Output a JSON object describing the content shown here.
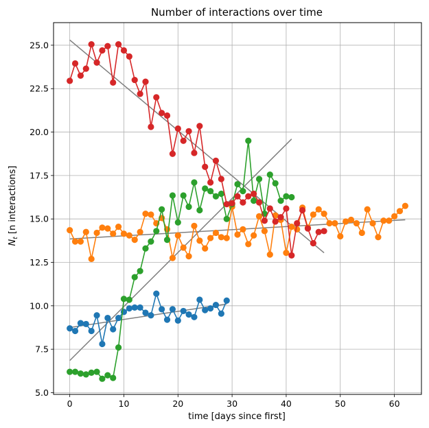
{
  "chart_data": {
    "type": "line",
    "title": "Number of interactions over time",
    "xlabel": "time [days since first]",
    "ylabel": {
      "main": "N",
      "sub": "t",
      "rest": " [n interactions]"
    },
    "xlim": [
      -3,
      65
    ],
    "ylim": [
      4.9,
      26.3
    ],
    "xticks": [
      0,
      10,
      20,
      30,
      40,
      50,
      60
    ],
    "yticks": [
      5.0,
      7.5,
      10.0,
      12.5,
      15.0,
      17.5,
      20.0,
      22.5,
      25.0
    ],
    "grid": true,
    "series": [
      {
        "color": "#1f77b4",
        "x": [
          0,
          1,
          2,
          3,
          4,
          5,
          6,
          7,
          8,
          9,
          10,
          11,
          12,
          13,
          14,
          15,
          16,
          17,
          18,
          19,
          20,
          21,
          22,
          23,
          24,
          25,
          26,
          27,
          28,
          29
        ],
        "y": [
          8.7,
          8.55,
          9.0,
          8.95,
          8.55,
          9.45,
          7.8,
          9.3,
          8.65,
          9.3,
          9.65,
          9.85,
          9.9,
          9.9,
          9.6,
          9.45,
          10.7,
          9.8,
          9.2,
          9.8,
          9.15,
          9.7,
          9.5,
          9.35,
          10.35,
          9.75,
          9.85,
          10.05,
          9.55,
          10.3
        ]
      },
      {
        "color": "#ff7f0e",
        "x": [
          0,
          1,
          2,
          3,
          4,
          5,
          6,
          7,
          8,
          9,
          10,
          11,
          12,
          13,
          14,
          15,
          16,
          17,
          18,
          19,
          20,
          21,
          22,
          23,
          24,
          25,
          26,
          27,
          28,
          29,
          30,
          31,
          32,
          33,
          34,
          35,
          36,
          37,
          38,
          39,
          40,
          41,
          42,
          43,
          44,
          45,
          46,
          47,
          48,
          49,
          50,
          51,
          52,
          53,
          54,
          55,
          56,
          57,
          58,
          59,
          60,
          61,
          62
        ],
        "y": [
          14.35,
          13.7,
          13.7,
          14.25,
          12.7,
          14.2,
          14.5,
          14.45,
          14.15,
          14.55,
          14.15,
          14.05,
          13.8,
          14.25,
          15.3,
          15.25,
          14.75,
          15.05,
          14.4,
          12.75,
          14.05,
          13.35,
          12.85,
          14.6,
          13.75,
          13.3,
          13.9,
          14.2,
          13.95,
          13.9,
          15.7,
          14.1,
          14.4,
          13.55,
          14.05,
          15.15,
          14.3,
          12.95,
          15.2,
          14.95,
          13.05,
          14.55,
          14.4,
          15.65,
          14.5,
          15.25,
          15.55,
          15.3,
          14.75,
          14.75,
          14.0,
          14.85,
          14.95,
          14.75,
          14.2,
          15.55,
          14.75,
          13.95,
          14.9,
          14.9,
          15.15,
          15.45,
          15.75
        ]
      },
      {
        "color": "#2ca02c",
        "x": [
          0,
          1,
          2,
          3,
          4,
          5,
          6,
          7,
          8,
          9,
          10,
          11,
          12,
          13,
          14,
          15,
          16,
          17,
          18,
          19,
          20,
          21,
          22,
          23,
          24,
          25,
          26,
          27,
          28,
          29,
          30,
          31,
          32,
          33,
          34,
          35,
          36,
          37,
          38,
          39,
          40,
          41
        ],
        "y": [
          6.2,
          6.2,
          6.1,
          6.05,
          6.15,
          6.2,
          5.8,
          6.0,
          5.85,
          7.6,
          10.4,
          10.35,
          11.65,
          12.0,
          13.3,
          13.7,
          14.3,
          15.55,
          13.8,
          16.35,
          14.8,
          16.35,
          15.7,
          17.1,
          15.5,
          16.75,
          16.6,
          16.3,
          16.45,
          15.0,
          15.85,
          17.0,
          16.6,
          19.5,
          16.05,
          17.3,
          15.3,
          17.55,
          17.05,
          16.05,
          16.3,
          16.25
        ]
      },
      {
        "color": "#d62728",
        "x": [
          0,
          1,
          2,
          3,
          4,
          5,
          6,
          7,
          8,
          9,
          10,
          11,
          12,
          13,
          14,
          15,
          16,
          17,
          18,
          19,
          20,
          21,
          22,
          23,
          24,
          25,
          26,
          27,
          28,
          29,
          30,
          31,
          32,
          33,
          34,
          35,
          36,
          37,
          38,
          39,
          40,
          41,
          42,
          43,
          44,
          45,
          46,
          47
        ],
        "y": [
          22.95,
          23.95,
          23.25,
          23.65,
          25.05,
          24.0,
          24.7,
          24.95,
          22.85,
          25.05,
          24.7,
          24.35,
          23.0,
          22.2,
          22.9,
          20.3,
          22.0,
          21.1,
          20.95,
          18.75,
          20.2,
          19.5,
          20.05,
          18.8,
          20.35,
          18.0,
          17.1,
          18.35,
          17.3,
          15.85,
          15.9,
          16.3,
          15.95,
          16.3,
          16.45,
          15.95,
          14.9,
          15.6,
          14.85,
          15.1,
          15.6,
          12.9,
          14.75,
          15.5,
          14.45,
          13.6,
          14.25,
          14.3
        ]
      }
    ],
    "trend_lines": [
      {
        "color": "#7f7f7f",
        "x": [
          0,
          29
        ],
        "y": [
          8.75,
          10.1
        ]
      },
      {
        "color": "#7f7f7f",
        "x": [
          0,
          62
        ],
        "y": [
          13.85,
          14.95
        ]
      },
      {
        "color": "#7f7f7f",
        "x": [
          0,
          41
        ],
        "y": [
          6.85,
          19.6
        ]
      },
      {
        "color": "#7f7f7f",
        "x": [
          0,
          47
        ],
        "y": [
          25.3,
          13.05
        ]
      }
    ]
  }
}
